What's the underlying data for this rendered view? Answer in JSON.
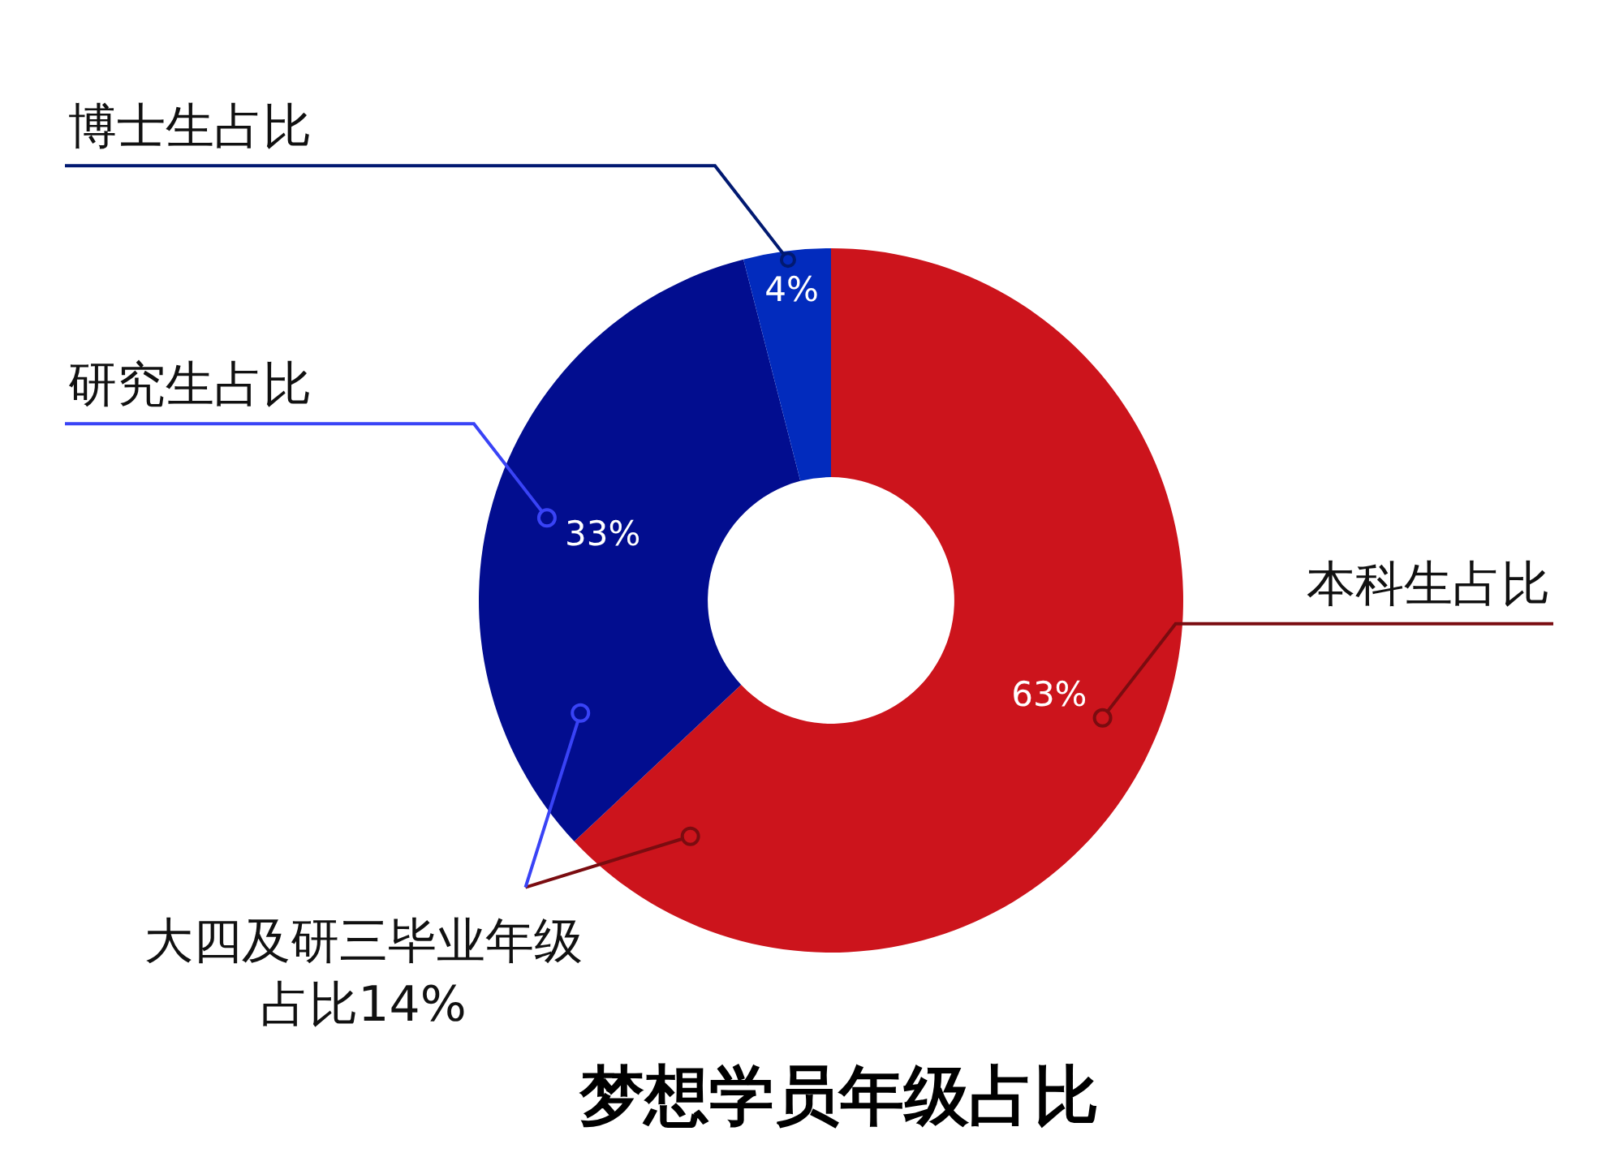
{
  "chart_data": {
    "type": "donut",
    "title": "梦想学员年级占比",
    "categories": [
      "本科生占比",
      "研究生占比",
      "博士生占比"
    ],
    "values": [
      63,
      33,
      4
    ],
    "colors": [
      "#cc141c",
      "#020d8f",
      "#022bbd"
    ],
    "value_labels": [
      "63%",
      "33%",
      "4%"
    ],
    "annotations": [
      "大四及研三毕业年级占比14%"
    ],
    "legend": false
  }
}
